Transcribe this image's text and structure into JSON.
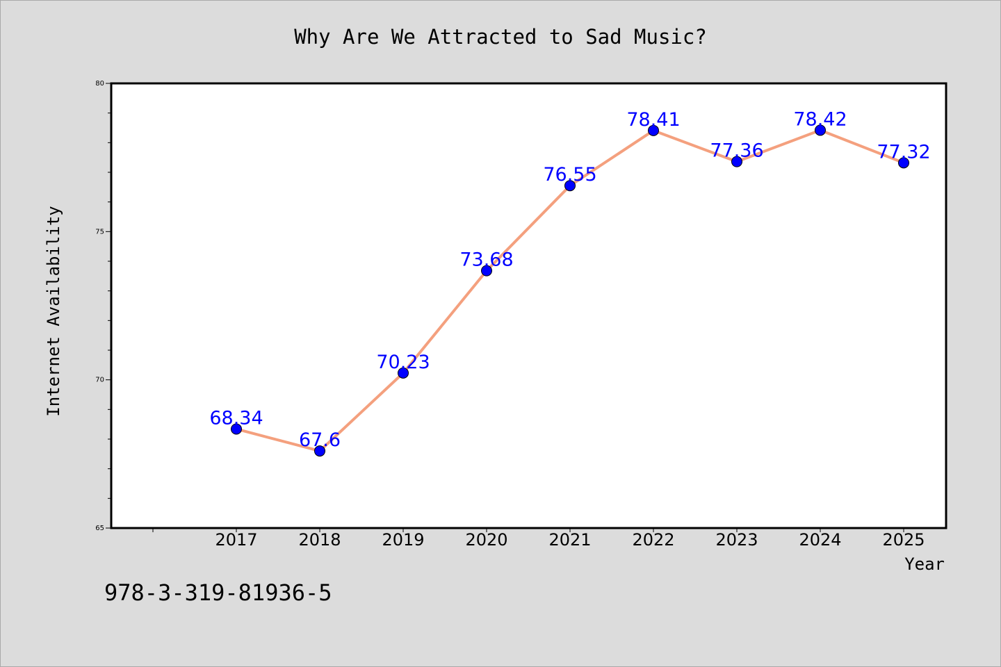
{
  "chart_data": {
    "type": "line",
    "title": "Why Are We Attracted to Sad Music?",
    "xlabel": "Year",
    "ylabel": "Internet Availability",
    "categories": [
      "2017",
      "2018",
      "2019",
      "2020",
      "2021",
      "2022",
      "2023",
      "2024",
      "2025"
    ],
    "series": [
      {
        "values": [
          68.34,
          67.6,
          70.23,
          73.68,
          76.55,
          78.41,
          77.36,
          78.42,
          77.32
        ],
        "labels": [
          "68.34",
          "67.6",
          "70.23",
          "73.68",
          "76.55",
          "78.41",
          "77.36",
          "78.42",
          "77.32"
        ],
        "line_color": "#f4a07e",
        "marker_color": "#0000ff"
      }
    ],
    "yticks": [
      "65",
      "70",
      "75",
      "80"
    ],
    "ylim": [
      65,
      80
    ],
    "grid": false,
    "legend": "none"
  },
  "footer": {
    "isbn": "978-3-319-81936-5"
  },
  "colors": {
    "background": "#dcdcdc",
    "plot_background": "#ffffff",
    "label_color": "#0000ff"
  }
}
